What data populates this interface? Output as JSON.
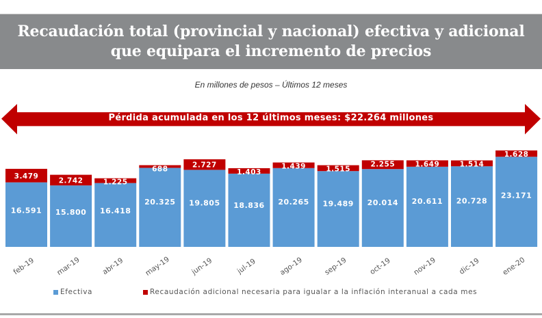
{
  "header": {
    "title_line1": "Recaudación total (provincial y nacional) efectiva y adicional",
    "title_line2": "que equipara el incremento de precios",
    "subtitle": "En millones de pesos – Últimos 12 meses"
  },
  "banner": {
    "text": "Pérdida acumulada en los 12 últimos meses: $22.264 millones",
    "color": "#c00000"
  },
  "colors": {
    "efectiva": "#5b9bd5",
    "adicional": "#c00000",
    "title_band": "#888a8c"
  },
  "chart_data": {
    "type": "bar",
    "stacked": true,
    "title": "Recaudación total (provincial y nacional) efectiva y adicional que equipara el incremento de precios",
    "subtitle": "En millones de pesos – Últimos 12 meses",
    "xlabel": "",
    "ylabel": "",
    "ylim": [
      0,
      25000
    ],
    "grid": false,
    "legend_position": "bottom",
    "categories": [
      "feb-19",
      "mar-19",
      "abr-19",
      "may-19",
      "jun-19",
      "jul-19",
      "ago-19",
      "sep-19",
      "oct-19",
      "nov-19",
      "dic-19",
      "ene-20"
    ],
    "series": [
      {
        "name": "Efectiva",
        "values": [
          16591,
          15800,
          16418,
          20325,
          19805,
          18836,
          20265,
          19489,
          20014,
          20611,
          20728,
          23171
        ],
        "labels": [
          "16.591",
          "15.800",
          "16.418",
          "20.325",
          "19.805",
          "18.836",
          "20.265",
          "19.489",
          "20.014",
          "20.611",
          "20.728",
          "23.171"
        ]
      },
      {
        "name": "Recaudación adicional necesaria para igualar a la inflación interanual a cada mes",
        "values": [
          3479,
          2742,
          1225,
          688,
          2727,
          1403,
          1439,
          1515,
          2255,
          1649,
          1514,
          1628
        ],
        "labels": [
          "3.479",
          "2.742",
          "1.225",
          "688",
          "2.727",
          "1.403",
          "1.439",
          "1.515",
          "2.255",
          "1.649",
          "1.514",
          "1.628"
        ]
      }
    ],
    "annotations": [
      "Pérdida acumulada en los 12 últimos meses: $22.264 millones"
    ]
  }
}
